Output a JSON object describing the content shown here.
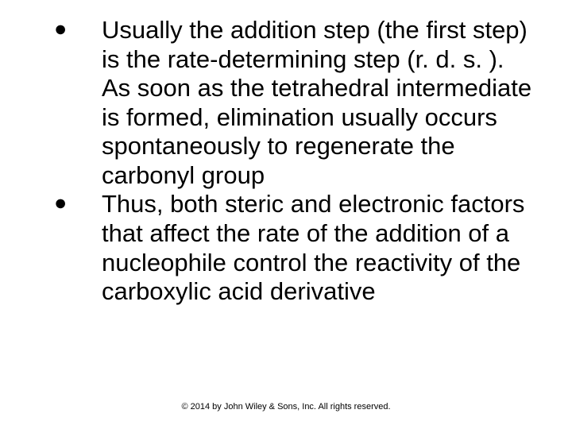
{
  "text_color": "#000000",
  "background_color": "#ffffff",
  "body_fontsize": 31,
  "footer_fontsize": 11,
  "bullets": [
    {
      "marker": "●",
      "text": "Usually the addition step (the first step) is the rate-determining step (r. d. s. ).  As soon as the tetrahedral intermediate is formed, elimination usually occurs spontaneously to regenerate the carbonyl group"
    },
    {
      "marker": "●",
      "text": "Thus, both steric and electronic factors that affect the rate of the addition of a nucleophile control the reactivity of the carboxylic acid derivative"
    }
  ],
  "footer": "© 2014 by John Wiley & Sons, Inc. All rights reserved."
}
